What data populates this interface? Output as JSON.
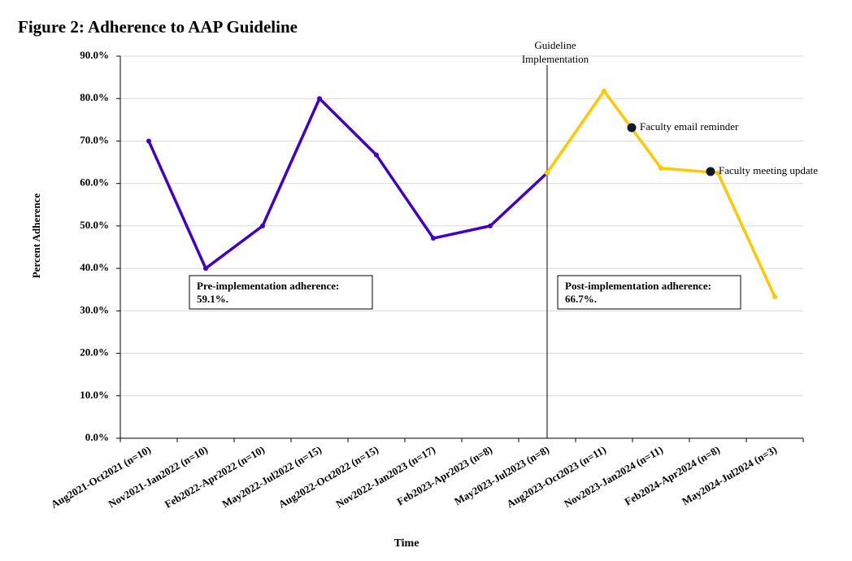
{
  "chart_data": {
    "type": "line",
    "title": "Figure 2: Adherence to AAP Guideline",
    "xlabel": "Time",
    "ylabel": "Percent Adherence",
    "categories": [
      "Aug2021-Oct2021 (n=10)",
      "Nov2021-Jan2022 (n=10)",
      "Feb2022-Apr2022 (n=10)",
      "May2022-Jul2022 (n=15)",
      "Aug2022-Oct2022 (n=15)",
      "Nov2022-Jan2023 (n=17)",
      "Feb2023-Apr2023 (n=8)",
      "May2023-Jul2023 (n=8)",
      "Aug2023-Oct2023 (n=11)",
      "Nov2023-Jan2024 (n=11)",
      "Feb2024-Apr2024 (n=8)",
      "May2024-Jul2024 (n=3)"
    ],
    "series": [
      {
        "name": "Pre-implementation",
        "color": "#4000c8",
        "values": [
          70.0,
          40.0,
          50.0,
          80.0,
          66.7,
          47.1,
          50.0,
          62.5,
          null,
          null,
          null,
          null
        ]
      },
      {
        "name": "Post-implementation",
        "color": "#ffc800",
        "values": [
          null,
          null,
          null,
          null,
          null,
          null,
          null,
          62.5,
          81.8,
          63.6,
          62.5,
          33.3
        ]
      }
    ],
    "ylim": [
      0,
      90
    ],
    "yticks": [
      {
        "value": 0,
        "label": "0.0%"
      },
      {
        "value": 10,
        "label": "10.0%"
      },
      {
        "value": 20,
        "label": "20.0%"
      },
      {
        "value": 30,
        "label": "30.0%"
      },
      {
        "value": 40,
        "label": "40.0%"
      },
      {
        "value": 50,
        "label": "50.0%"
      },
      {
        "value": 60,
        "label": "60.0%"
      },
      {
        "value": 70,
        "label": "70.0%"
      },
      {
        "value": 80,
        "label": "80.0%"
      },
      {
        "value": 90,
        "label": "90.0%"
      }
    ],
    "grid": true,
    "implementation_label": "Guideline Implementation",
    "events": [
      "Faculty email reminder",
      "Faculty meeting update"
    ],
    "boxes": [
      {
        "heading": "Pre-implementation adherence:",
        "value": "59.1%.",
        "color": "#4000c8"
      },
      {
        "heading": "Post-implementation adherence:",
        "value": "66.7%.",
        "color": "#b8860b"
      }
    ]
  }
}
